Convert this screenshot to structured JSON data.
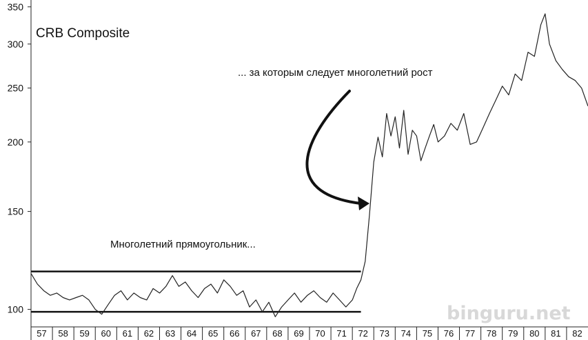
{
  "chart_data": {
    "type": "line",
    "title": "CRB Composite",
    "y_scale": "log",
    "ylim": [
      93,
      360
    ],
    "y_ticks": [
      "100",
      "150",
      "200",
      "250",
      "300",
      "350"
    ],
    "x_tick_labels": [
      "57",
      "58",
      "59",
      "60",
      "61",
      "62",
      "63",
      "64",
      "65",
      "66",
      "67",
      "68",
      "69",
      "70",
      "71",
      "72",
      "73",
      "74",
      "75",
      "76",
      "77",
      "78",
      "79",
      "80",
      "81",
      "82"
    ],
    "xlim": [
      1957.0,
      1983.0
    ],
    "grid": false,
    "series": [
      {
        "x": [
          1957.0,
          1957.3,
          1957.6,
          1957.9,
          1958.2,
          1958.5,
          1958.8,
          1959.1,
          1959.4,
          1959.7,
          1960.0,
          1960.3,
          1960.6,
          1960.9,
          1961.2,
          1961.5,
          1961.8,
          1962.1,
          1962.4,
          1962.7,
          1963.0,
          1963.3,
          1963.6,
          1963.9,
          1964.2,
          1964.5,
          1964.8,
          1965.1,
          1965.4,
          1965.7,
          1966.0,
          1966.3,
          1966.6,
          1966.9,
          1967.2,
          1967.5,
          1967.8,
          1968.1,
          1968.4,
          1968.7,
          1969.0,
          1969.3,
          1969.6,
          1969.9,
          1970.2,
          1970.5,
          1970.8,
          1971.1,
          1971.4,
          1971.7,
          1972.0,
          1972.2,
          1972.4,
          1972.6,
          1972.8,
          1973.0,
          1973.2,
          1973.4,
          1973.6,
          1973.8,
          1974.0,
          1974.2,
          1974.4,
          1974.6,
          1974.8,
          1975.0,
          1975.2,
          1975.4,
          1975.6,
          1975.8,
          1976.0,
          1976.3,
          1976.6,
          1976.9,
          1977.2,
          1977.5,
          1977.8,
          1978.1,
          1978.4,
          1978.7,
          1979.0,
          1979.3,
          1979.6,
          1979.9,
          1980.2,
          1980.5,
          1980.8,
          1981.0,
          1981.2,
          1981.5,
          1981.8,
          1982.1,
          1982.4,
          1982.7,
          1983.0
        ],
        "values": [
          116,
          111,
          108,
          106,
          107,
          105,
          104,
          105,
          106,
          104,
          100,
          98,
          102,
          106,
          108,
          104,
          107,
          105,
          104,
          109,
          107,
          110,
          115,
          110,
          112,
          108,
          105,
          109,
          111,
          107,
          113,
          110,
          106,
          108,
          101,
          104,
          99,
          103,
          97,
          101,
          104,
          107,
          103,
          106,
          108,
          105,
          103,
          107,
          104,
          101,
          104,
          109,
          113,
          122,
          148,
          184,
          204,
          188,
          225,
          205,
          222,
          195,
          228,
          190,
          210,
          205,
          185,
          195,
          205,
          215,
          200,
          205,
          216,
          210,
          225,
          198,
          200,
          212,
          225,
          238,
          252,
          243,
          265,
          258,
          290,
          285,
          325,
          340,
          300,
          280,
          270,
          262,
          258,
          250,
          232
        ]
      }
    ],
    "annotations": {
      "growth": "... за которым следует многолетний рост",
      "rectangle": "Многолетний прямоугольник..."
    },
    "rectangle_bounds": {
      "top": 117,
      "bottom": 99,
      "x_start": 1957.0,
      "x_end": 1972.4
    },
    "watermark": "binguru.net"
  }
}
